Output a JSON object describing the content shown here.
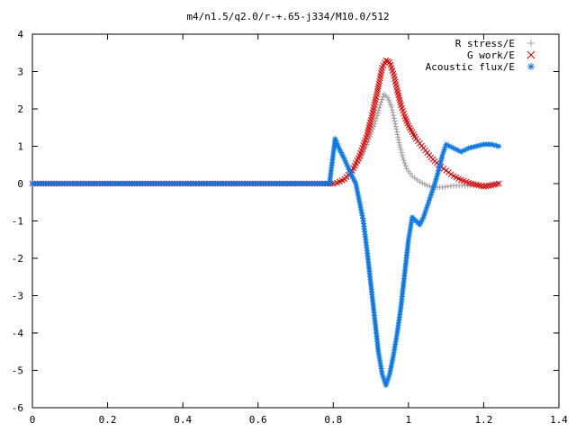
{
  "chart_data": {
    "type": "scatter",
    "title": "m4/n1.5/q2.0/r-+.65-j334/M10.0/512",
    "xlabel": "",
    "ylabel": "",
    "xlim": [
      0,
      1.4
    ],
    "ylim": [
      -6,
      4
    ],
    "x_ticks": [
      "0",
      "0.2",
      "0.4",
      "0.6",
      "0.8",
      "1",
      "1.2",
      "1.4"
    ],
    "y_ticks": [
      "4",
      "3",
      "2",
      "1",
      "0",
      "-1",
      "-2",
      "-3",
      "-4",
      "-5",
      "-6"
    ],
    "grid": false,
    "legend_position": "top-right",
    "series": [
      {
        "name": "R stress/E",
        "marker": "plus",
        "color": "#a0a0a0",
        "points": [
          [
            0.0,
            0
          ],
          [
            0.05,
            0
          ],
          [
            0.1,
            0
          ],
          [
            0.15,
            0
          ],
          [
            0.2,
            0
          ],
          [
            0.25,
            0
          ],
          [
            0.3,
            0
          ],
          [
            0.35,
            0
          ],
          [
            0.4,
            0
          ],
          [
            0.45,
            0
          ],
          [
            0.5,
            0
          ],
          [
            0.55,
            0
          ],
          [
            0.6,
            0
          ],
          [
            0.65,
            0
          ],
          [
            0.7,
            0
          ],
          [
            0.75,
            0
          ],
          [
            0.8,
            0
          ],
          [
            0.81,
            0.02
          ],
          [
            0.83,
            0.1
          ],
          [
            0.85,
            0.3
          ],
          [
            0.87,
            0.6
          ],
          [
            0.89,
            1.05
          ],
          [
            0.91,
            1.6
          ],
          [
            0.925,
            2.1
          ],
          [
            0.935,
            2.4
          ],
          [
            0.945,
            2.3
          ],
          [
            0.955,
            2.05
          ],
          [
            0.965,
            1.6
          ],
          [
            0.975,
            1.1
          ],
          [
            0.985,
            0.7
          ],
          [
            0.995,
            0.4
          ],
          [
            1.01,
            0.2
          ],
          [
            1.03,
            0.05
          ],
          [
            1.05,
            -0.05
          ],
          [
            1.07,
            -0.1
          ],
          [
            1.09,
            -0.1
          ],
          [
            1.12,
            -0.05
          ],
          [
            1.15,
            -0.05
          ],
          [
            1.18,
            -0.05
          ],
          [
            1.21,
            -0.03
          ],
          [
            1.24,
            0
          ]
        ]
      },
      {
        "name": "G work/E",
        "marker": "cross",
        "color": "#e00000",
        "points": [
          [
            0.0,
            0
          ],
          [
            0.05,
            0
          ],
          [
            0.1,
            0
          ],
          [
            0.15,
            0
          ],
          [
            0.2,
            0
          ],
          [
            0.25,
            0
          ],
          [
            0.3,
            0
          ],
          [
            0.35,
            0
          ],
          [
            0.4,
            0
          ],
          [
            0.45,
            0
          ],
          [
            0.5,
            0
          ],
          [
            0.55,
            0
          ],
          [
            0.6,
            0
          ],
          [
            0.65,
            0
          ],
          [
            0.7,
            0
          ],
          [
            0.75,
            0
          ],
          [
            0.8,
            0
          ],
          [
            0.81,
            0.02
          ],
          [
            0.83,
            0.12
          ],
          [
            0.85,
            0.35
          ],
          [
            0.87,
            0.75
          ],
          [
            0.89,
            1.3
          ],
          [
            0.905,
            1.9
          ],
          [
            0.92,
            2.6
          ],
          [
            0.93,
            3.1
          ],
          [
            0.94,
            3.3
          ],
          [
            0.95,
            3.25
          ],
          [
            0.96,
            2.95
          ],
          [
            0.97,
            2.5
          ],
          [
            0.98,
            2.1
          ],
          [
            0.99,
            1.8
          ],
          [
            1.0,
            1.55
          ],
          [
            1.02,
            1.2
          ],
          [
            1.04,
            0.95
          ],
          [
            1.06,
            0.7
          ],
          [
            1.08,
            0.5
          ],
          [
            1.1,
            0.35
          ],
          [
            1.12,
            0.2
          ],
          [
            1.14,
            0.1
          ],
          [
            1.16,
            0.02
          ],
          [
            1.18,
            -0.03
          ],
          [
            1.2,
            -0.08
          ],
          [
            1.22,
            -0.05
          ],
          [
            1.24,
            0
          ]
        ]
      },
      {
        "name": "Acoustic flux/E",
        "marker": "star",
        "color": "#0a78e6",
        "points": [
          [
            0.0,
            0
          ],
          [
            0.05,
            0
          ],
          [
            0.1,
            0
          ],
          [
            0.15,
            0
          ],
          [
            0.2,
            0
          ],
          [
            0.25,
            0
          ],
          [
            0.3,
            0
          ],
          [
            0.35,
            0
          ],
          [
            0.4,
            0
          ],
          [
            0.45,
            0
          ],
          [
            0.5,
            0
          ],
          [
            0.55,
            0
          ],
          [
            0.6,
            0
          ],
          [
            0.65,
            0
          ],
          [
            0.7,
            0
          ],
          [
            0.75,
            0
          ],
          [
            0.79,
            0
          ],
          [
            0.805,
            1.2
          ],
          [
            0.815,
            0.95
          ],
          [
            0.83,
            0.65
          ],
          [
            0.845,
            0.3
          ],
          [
            0.86,
            0.0
          ],
          [
            0.87,
            -0.5
          ],
          [
            0.88,
            -1.0
          ],
          [
            0.89,
            -1.8
          ],
          [
            0.9,
            -2.7
          ],
          [
            0.91,
            -3.6
          ],
          [
            0.92,
            -4.5
          ],
          [
            0.93,
            -5.1
          ],
          [
            0.94,
            -5.4
          ],
          [
            0.95,
            -5.1
          ],
          [
            0.96,
            -4.6
          ],
          [
            0.97,
            -4.0
          ],
          [
            0.98,
            -3.3
          ],
          [
            0.99,
            -2.4
          ],
          [
            1.0,
            -1.5
          ],
          [
            1.01,
            -0.9
          ],
          [
            1.02,
            -1.0
          ],
          [
            1.03,
            -1.1
          ],
          [
            1.04,
            -0.9
          ],
          [
            1.05,
            -0.6
          ],
          [
            1.06,
            -0.3
          ],
          [
            1.07,
            0.0
          ],
          [
            1.08,
            0.35
          ],
          [
            1.09,
            0.75
          ],
          [
            1.1,
            1.05
          ],
          [
            1.12,
            0.95
          ],
          [
            1.14,
            0.85
          ],
          [
            1.16,
            0.95
          ],
          [
            1.18,
            1.0
          ],
          [
            1.2,
            1.05
          ],
          [
            1.22,
            1.05
          ],
          [
            1.24,
            1.0
          ]
        ]
      }
    ]
  }
}
